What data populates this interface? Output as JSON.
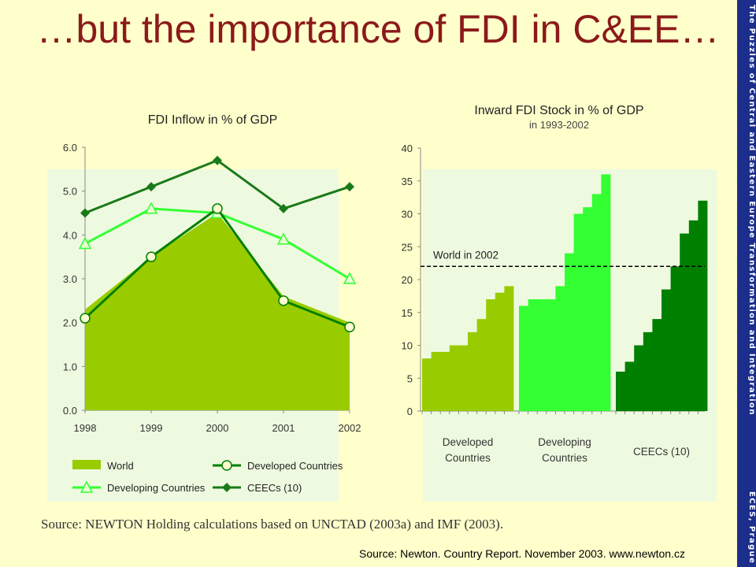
{
  "slide": {
    "title": "…but the importance of FDI in C&EE…",
    "sidebar_top": "The Puzzles of Central and Eastern Europe Transformation and Integration",
    "sidebar_bottom": "ECES, Prague",
    "source_bottom": "Source: Newton. Country Report. November 2003. www.newton.cz",
    "source_left": "Source: NEWTON Holding calculations based on UNCTAD (2003a) and IMF (2003)."
  },
  "colors": {
    "world": "#99cc00",
    "developed": "#008000",
    "developing": "#33ff33",
    "ceecs": "#1a7a1a",
    "title": "#8b1a1a"
  },
  "chart_data": [
    {
      "type": "line",
      "title": "FDI Inflow in % of GDP",
      "categories": [
        "1998",
        "1999",
        "2000",
        "2001",
        "2002"
      ],
      "ylim": [
        0,
        6
      ],
      "yticks": [
        "0.0",
        "1.0",
        "2.0",
        "3.0",
        "4.0",
        "5.0",
        "6.0"
      ],
      "series": [
        {
          "name": "World",
          "kind": "area",
          "values": [
            2.3,
            3.5,
            4.5,
            2.6,
            2.0
          ]
        },
        {
          "name": "Developed Countries",
          "kind": "line",
          "marker": "circle",
          "values": [
            2.1,
            3.5,
            4.6,
            2.5,
            1.9
          ]
        },
        {
          "name": "Developing Countries",
          "kind": "line",
          "marker": "triangle",
          "values": [
            3.8,
            4.6,
            4.5,
            3.9,
            3.0
          ]
        },
        {
          "name": "CEECs (10)",
          "kind": "line",
          "marker": "diamond",
          "values": [
            4.5,
            5.1,
            5.7,
            4.6,
            5.1
          ]
        }
      ],
      "legend": "bottom"
    },
    {
      "type": "bar",
      "title": "Inward FDI Stock in % of GDP",
      "subtitle": "in 1993-2002",
      "ylim": [
        0,
        40
      ],
      "yticks": [
        "0",
        "5",
        "10",
        "15",
        "20",
        "25",
        "30",
        "35",
        "40"
      ],
      "groups": [
        {
          "name": "Developed Countries",
          "label_lines": [
            "Developed",
            "Countries"
          ],
          "values": [
            8,
            9,
            9,
            10,
            10,
            12,
            14,
            17,
            18,
            19
          ]
        },
        {
          "name": "Developing Countries",
          "label_lines": [
            "Developing",
            "Countries"
          ],
          "values": [
            16,
            17,
            17,
            17,
            19,
            24,
            30,
            31,
            33,
            36
          ]
        },
        {
          "name": "CEECs (10)",
          "label_lines": [
            "CEECs (10)"
          ],
          "values": [
            6,
            7.5,
            10,
            12,
            14,
            18.5,
            22,
            27,
            29,
            32
          ]
        }
      ],
      "reference_line": {
        "label": "World in 2002",
        "value": 22
      }
    }
  ]
}
